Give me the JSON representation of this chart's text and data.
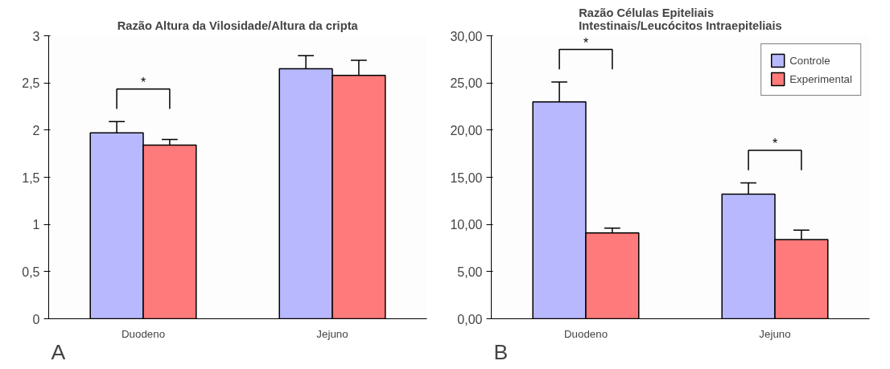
{
  "chart_data": [
    {
      "type": "bar",
      "title": "Razão Altura da Vilosidade/Altura da cripta",
      "categories": [
        "Duodeno",
        "Jejuno"
      ],
      "series": [
        {
          "color": "#b8b8ff",
          "values": [
            1.97,
            2.65
          ],
          "errors": [
            [
              1.97,
              2.09
            ],
            [
              2.65,
              2.79
            ]
          ]
        },
        {
          "color": "#ff7a7a",
          "values": [
            1.84,
            2.58
          ],
          "errors": [
            [
              1.84,
              1.9
            ],
            [
              2.58,
              2.74
            ]
          ]
        }
      ],
      "ylim": [
        0,
        3
      ],
      "yticks": [
        0,
        {
          "value": 0.5,
          "label": "0,5"
        },
        1,
        {
          "value": 1.5,
          "label": "1,5"
        },
        2,
        {
          "value": 2.5,
          "label": "2,5"
        },
        3
      ],
      "annotations": [
        "*",
        "A"
      ],
      "legend": false
    },
    {
      "type": "bar",
      "title": "Razão Células Epiteliais\nIntestinais/Leucócitos Intraepiteliais",
      "categories": [
        "Duodeno",
        "Jejuno"
      ],
      "series": [
        {
          "name": "Controle",
          "color": "#b8b8ff",
          "values": [
            23.0,
            13.2
          ],
          "errors": [
            [
              23.0,
              25.1
            ],
            [
              13.2,
              14.4
            ]
          ]
        },
        {
          "name": "Experimental",
          "color": "#ff7a7a",
          "values": [
            9.1,
            8.4
          ],
          "errors": [
            [
              9.1,
              9.6
            ],
            [
              8.4,
              9.4
            ]
          ]
        }
      ],
      "ylim": [
        0,
        30
      ],
      "yticks": [
        {
          "value": 0,
          "label": "0,00"
        },
        {
          "value": 5,
          "label": "5,00"
        },
        {
          "value": 10,
          "label": "10,00"
        },
        {
          "value": 15,
          "label": "15,00"
        },
        {
          "value": 20,
          "label": "20,00"
        },
        {
          "value": 25,
          "label": "25,00"
        },
        {
          "value": 30,
          "label": "30,00"
        }
      ],
      "annotations": [
        "*",
        "*",
        "B"
      ],
      "legend": "top right"
    }
  ]
}
